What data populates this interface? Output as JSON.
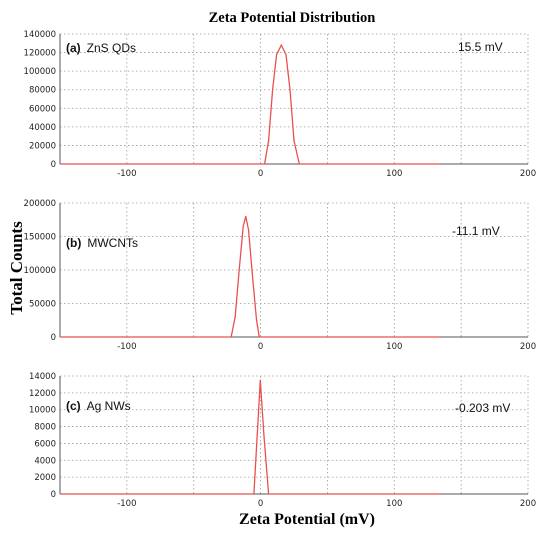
{
  "title": "Zeta Potential Distribution",
  "ylabel": "Total Counts",
  "xlabel": "Zeta Potential (mV)",
  "colors": {
    "curve": "#e8504f",
    "grid": "#9a9a9a",
    "axis": "#555555"
  },
  "chart_data": [
    {
      "type": "line",
      "panel_label": "(a)",
      "series_label": "ZnS QDs",
      "peak_label": "15.5 mV",
      "xlim": [
        -150,
        200
      ],
      "x_ticks": [
        -100,
        0,
        100,
        200
      ],
      "ylim": [
        0,
        140000
      ],
      "y_ticks": [
        0,
        20000,
        40000,
        60000,
        80000,
        100000,
        120000,
        140000
      ],
      "grid": true,
      "series": [
        {
          "x": [
            -150,
            3,
            6,
            9,
            12,
            15.5,
            19,
            22,
            25,
            29,
            135
          ],
          "y": [
            0,
            0,
            25000,
            80000,
            118000,
            128000,
            118000,
            80000,
            25000,
            0,
            0
          ]
        }
      ]
    },
    {
      "type": "line",
      "panel_label": "(b)",
      "series_label": "MWCNTs",
      "peak_label": "-11.1 mV",
      "xlim": [
        -150,
        200
      ],
      "x_ticks": [
        -100,
        0,
        100,
        200
      ],
      "ylim": [
        0,
        200000
      ],
      "y_ticks": [
        0,
        50000,
        100000,
        150000,
        200000
      ],
      "grid": true,
      "series": [
        {
          "x": [
            -150,
            -22,
            -19,
            -16,
            -13,
            -11.1,
            -9,
            -6,
            -3,
            -1,
            135
          ],
          "y": [
            0,
            0,
            30000,
            100000,
            165000,
            180000,
            160000,
            90000,
            25000,
            0,
            0
          ]
        }
      ]
    },
    {
      "type": "line",
      "panel_label": "(c)",
      "series_label": "Ag NWs",
      "peak_label": "-0.203 mV",
      "xlim": [
        -150,
        200
      ],
      "x_ticks": [
        -100,
        0,
        100,
        200
      ],
      "ylim": [
        0,
        14000
      ],
      "y_ticks": [
        0,
        2000,
        4000,
        6000,
        8000,
        10000,
        12000,
        14000
      ],
      "grid": true,
      "series": [
        {
          "x": [
            -150,
            -5,
            -2.5,
            -0.203,
            2.5,
            6,
            135
          ],
          "y": [
            0,
            0,
            7000,
            13500,
            7000,
            0,
            0
          ]
        }
      ]
    }
  ]
}
